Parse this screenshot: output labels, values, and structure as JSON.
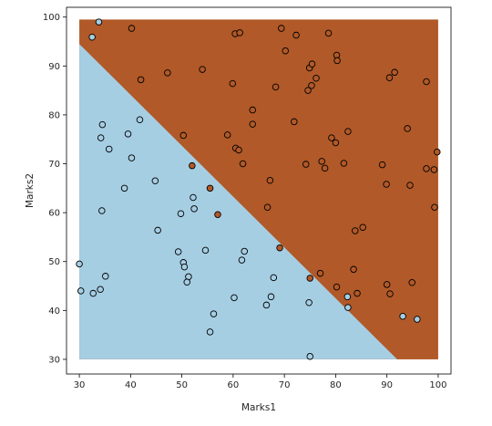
{
  "chart_data": {
    "type": "scatter",
    "title": "",
    "xlabel": "Marks1",
    "ylabel": "Marks2",
    "xlim": [
      27.5,
      102.5
    ],
    "ylim": [
      27.0,
      102.0
    ],
    "x_ticks": [
      30,
      40,
      50,
      60,
      70,
      80,
      90,
      100
    ],
    "y_ticks": [
      30,
      40,
      50,
      60,
      70,
      80,
      90,
      100
    ],
    "grid": false,
    "legend": "none",
    "background_region": {
      "x_range": [
        30,
        100
      ],
      "y_range": [
        30,
        99.5
      ],
      "boundary_line": [
        [
          30,
          94.5
        ],
        [
          92,
          30
        ]
      ],
      "below_color": "#a6cee3",
      "above_color": "#b15928"
    },
    "colors": {
      "class_0": "#a6cee3",
      "class_1": "#b15928",
      "edge": "#000000"
    },
    "points": [
      [
        30,
        49.5,
        0
      ],
      [
        30.3,
        44,
        0
      ],
      [
        32.5,
        95.9,
        0
      ],
      [
        32.7,
        43.5,
        0
      ],
      [
        33.8,
        99,
        0
      ],
      [
        34.2,
        75.3,
        0
      ],
      [
        34.1,
        44.3,
        0
      ],
      [
        34.5,
        78,
        0
      ],
      [
        34.4,
        60.4,
        0
      ],
      [
        35.1,
        47,
        0
      ],
      [
        35.8,
        73,
        0
      ],
      [
        38.8,
        65,
        0
      ],
      [
        39.5,
        76.1,
        0
      ],
      [
        40.2,
        71.2,
        0
      ],
      [
        41.8,
        79,
        0
      ],
      [
        44.8,
        66.5,
        0
      ],
      [
        45.3,
        56.4,
        0
      ],
      [
        49.3,
        52,
        0
      ],
      [
        49.8,
        59.8,
        0
      ],
      [
        50.3,
        49.8,
        0
      ],
      [
        50.5,
        48.9,
        0
      ],
      [
        51.3,
        46.9,
        0
      ],
      [
        51,
        45.8,
        0
      ],
      [
        52.2,
        63.1,
        0
      ],
      [
        52.4,
        60.8,
        0
      ],
      [
        54.6,
        52.3,
        0
      ],
      [
        55.5,
        35.6,
        0
      ],
      [
        56.2,
        39.3,
        0
      ],
      [
        60.2,
        42.6,
        0
      ],
      [
        61.7,
        50.3,
        0
      ],
      [
        62.2,
        52.1,
        0
      ],
      [
        66.5,
        41.1,
        0
      ],
      [
        67.4,
        42.8,
        0
      ],
      [
        67.9,
        46.7,
        0
      ],
      [
        74.8,
        41.6,
        0
      ],
      [
        75,
        30.6,
        0
      ],
      [
        82.3,
        42.8,
        0
      ],
      [
        82.4,
        40.6,
        0
      ],
      [
        93.1,
        38.8,
        0
      ],
      [
        95.9,
        38.2,
        0
      ],
      [
        52,
        69.6,
        1
      ],
      [
        55.5,
        65,
        1
      ],
      [
        57,
        59.6,
        1
      ],
      [
        69.1,
        52.8,
        1
      ],
      [
        75,
        46.6,
        1
      ],
      [
        40.2,
        97.7,
        1
      ],
      [
        42,
        87.2,
        1
      ],
      [
        47.2,
        88.6,
        1
      ],
      [
        50.3,
        75.8,
        1
      ],
      [
        54,
        89.3,
        1
      ],
      [
        58.9,
        75.9,
        1
      ],
      [
        59.9,
        86.4,
        1
      ],
      [
        60.4,
        96.6,
        1
      ],
      [
        60.5,
        73.2,
        1
      ],
      [
        61.3,
        96.8,
        1
      ],
      [
        61.1,
        72.8,
        1
      ],
      [
        61.9,
        70,
        1
      ],
      [
        63.8,
        81,
        1
      ],
      [
        63.8,
        78.1,
        1
      ],
      [
        66.7,
        61.1,
        1
      ],
      [
        67.2,
        66.6,
        1
      ],
      [
        68.3,
        85.7,
        1
      ],
      [
        69.4,
        97.7,
        1
      ],
      [
        70.2,
        93.1,
        1
      ],
      [
        71.9,
        78.6,
        1
      ],
      [
        72.3,
        96.3,
        1
      ],
      [
        74.2,
        69.9,
        1
      ],
      [
        74.6,
        85,
        1
      ],
      [
        74.9,
        89.6,
        1
      ],
      [
        75.4,
        90.4,
        1
      ],
      [
        75.3,
        86,
        1
      ],
      [
        76.2,
        87.5,
        1
      ],
      [
        77.3,
        70.5,
        1
      ],
      [
        77.9,
        69.1,
        1
      ],
      [
        78.6,
        96.7,
        1
      ],
      [
        79.2,
        75.3,
        1
      ],
      [
        80,
        74.3,
        1
      ],
      [
        80.2,
        92.2,
        1
      ],
      [
        80.3,
        91.1,
        1
      ],
      [
        81.6,
        70.1,
        1
      ],
      [
        82.4,
        76.6,
        1
      ],
      [
        83.8,
        56.3,
        1
      ],
      [
        83.5,
        48.4,
        1
      ],
      [
        84.2,
        43.5,
        1
      ],
      [
        85.3,
        57,
        1
      ],
      [
        80.2,
        44.8,
        1
      ],
      [
        77,
        47.6,
        1
      ],
      [
        89.1,
        69.8,
        1
      ],
      [
        89.9,
        65.8,
        1
      ],
      [
        90,
        45.3,
        1
      ],
      [
        90.5,
        87.6,
        1
      ],
      [
        90.6,
        43.4,
        1
      ],
      [
        91.5,
        88.7,
        1
      ],
      [
        94,
        77.2,
        1
      ],
      [
        94.5,
        65.6,
        1
      ],
      [
        94.9,
        45.7,
        1
      ],
      [
        97.7,
        86.8,
        1
      ],
      [
        97.7,
        69,
        1
      ],
      [
        99.3,
        61.1,
        1
      ],
      [
        99.2,
        68.8,
        1
      ],
      [
        99.8,
        72.4,
        1
      ]
    ]
  }
}
